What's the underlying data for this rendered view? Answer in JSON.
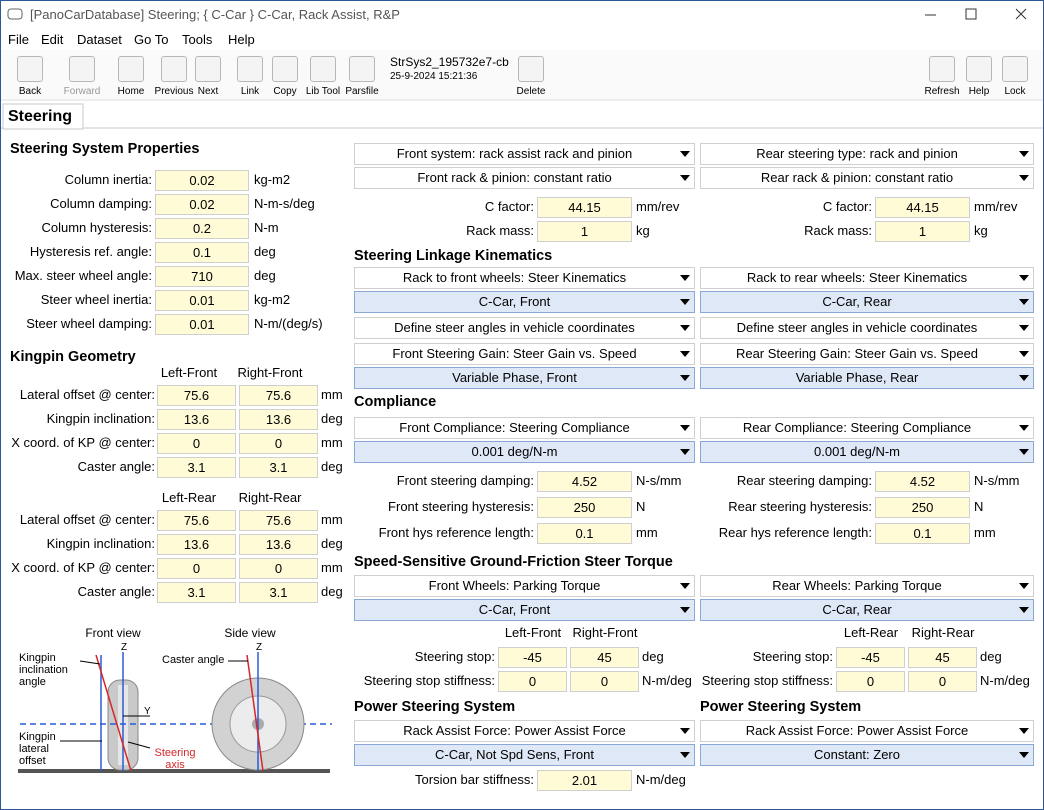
{
  "window": {
    "title": "[PanoCarDatabase] Steering; { C-Car } C-Car, Rack Assist, R&P"
  },
  "menu": [
    "File",
    "Edit",
    "Dataset",
    "Go To",
    "Tools",
    "Help"
  ],
  "toolbar": {
    "buttons": [
      "Back",
      "Forward",
      "Home",
      "Previous",
      "Next",
      "Link",
      "Copy",
      "Lib Tool",
      "Parsfile",
      "Delete",
      "Refresh",
      "Help",
      "Lock"
    ],
    "dataset_name": "StrSys2_195732e7-cb",
    "dataset_date": "25-9-2024 15:21:36"
  },
  "tab": "Steering",
  "steering_system": {
    "heading": "Steering System Properties",
    "fields": [
      {
        "label": "Column inertia:",
        "value": 0.02,
        "unit": "kg-m2"
      },
      {
        "label": "Column damping:",
        "value": 0.02,
        "unit": "N-m-s/deg"
      },
      {
        "label": "Column hysteresis:",
        "value": 0.2,
        "unit": "N-m"
      },
      {
        "label": "Hysteresis ref. angle:",
        "value": 0.1,
        "unit": "deg"
      },
      {
        "label": "Max. steer wheel angle:",
        "value": 710,
        "unit": "deg"
      },
      {
        "label": "Steer wheel inertia:",
        "value": 0.01,
        "unit": "kg-m2"
      },
      {
        "label": "Steer wheel damping:",
        "value": 0.01,
        "unit": "N-m/(deg/s)"
      }
    ]
  },
  "kingpin": {
    "heading": "Kingpin Geometry",
    "groups": [
      {
        "columns": [
          "Left-Front",
          "Right-Front"
        ],
        "rows": [
          {
            "label": "Lateral offset @ center:",
            "values": [
              75.6,
              75.6
            ],
            "unit": "mm"
          },
          {
            "label": "Kingpin inclination:",
            "values": [
              13.6,
              13.6
            ],
            "unit": "deg"
          },
          {
            "label": "X coord. of KP @ center:",
            "values": [
              0,
              0
            ],
            "unit": "mm"
          },
          {
            "label": "Caster angle:",
            "values": [
              3.1,
              3.1
            ],
            "unit": "deg"
          }
        ]
      },
      {
        "columns": [
          "Left-Rear",
          "Right-Rear"
        ],
        "rows": [
          {
            "label": "Lateral offset @ center:",
            "values": [
              75.6,
              75.6
            ],
            "unit": "mm"
          },
          {
            "label": "Kingpin inclination:",
            "values": [
              13.6,
              13.6
            ],
            "unit": "deg"
          },
          {
            "label": "X coord. of KP @ center:",
            "values": [
              0,
              0
            ],
            "unit": "mm"
          },
          {
            "label": "Caster angle:",
            "values": [
              3.1,
              3.1
            ],
            "unit": "deg"
          }
        ]
      }
    ]
  },
  "diagram": {
    "front_view": "Front view",
    "side_view": "Side view",
    "kingpin_angle": "Kingpin inclination angle",
    "caster_angle": "Caster angle",
    "lateral_offset": "Kingpin lateral offset",
    "steering_axis": "Steering axis",
    "z_front": "Z",
    "z_side": "Z",
    "y_axis": "Y"
  },
  "right": {
    "rows": [
      {
        "front": {
          "dropdown": "Front system: rack assist rack and pinion",
          "highlight": false
        },
        "rear": {
          "dropdown": "Rear steering type: rack and pinion",
          "highlight": false
        }
      },
      {
        "front": {
          "dropdown": "Front rack & pinion: constant ratio",
          "highlight": false
        },
        "rear": {
          "dropdown": "Rear rack & pinion: constant ratio",
          "highlight": false
        }
      },
      {
        "front": {
          "label": "C factor:",
          "value": 44.15,
          "unit": "mm/rev"
        },
        "rear": {
          "label": "C factor:",
          "value": 44.15,
          "unit": "mm/rev"
        }
      },
      {
        "front": {
          "label": "Rack mass:",
          "value": 1,
          "unit": "kg"
        },
        "rear": {
          "label": "Rack mass:",
          "value": 1,
          "unit": "kg"
        }
      },
      {
        "heading": "Steering Linkage Kinematics"
      },
      {
        "front": {
          "dropdown": "Rack to front wheels: Steer Kinematics",
          "highlight": false
        },
        "rear": {
          "dropdown": "Rack to rear wheels: Steer Kinematics",
          "highlight": false
        }
      },
      {
        "front": {
          "dropdown": "C-Car, Front",
          "highlight": true
        },
        "rear": {
          "dropdown": "C-Car, Rear",
          "highlight": true
        }
      },
      {
        "front": {
          "dropdown": "Define steer angles in vehicle coordinates",
          "highlight": false
        },
        "rear": {
          "dropdown": "Define steer angles in vehicle coordinates",
          "highlight": false
        }
      },
      {
        "front": {
          "dropdown": "Front Steering Gain: Steer Gain vs. Speed",
          "highlight": false
        },
        "rear": {
          "dropdown": "Rear Steering Gain: Steer Gain vs. Speed",
          "highlight": false
        }
      },
      {
        "front": {
          "dropdown": "Variable Phase, Front",
          "highlight": true
        },
        "rear": {
          "dropdown": "Variable Phase, Rear",
          "highlight": true
        }
      },
      {
        "heading": "Compliance"
      },
      {
        "front": {
          "dropdown": "Front Compliance: Steering Compliance",
          "highlight": false
        },
        "rear": {
          "dropdown": "Rear Compliance: Steering Compliance",
          "highlight": false
        }
      },
      {
        "front": {
          "dropdown": "0.001 deg/N-m",
          "highlight": true
        },
        "rear": {
          "dropdown": "0.001 deg/N-m",
          "highlight": true
        }
      },
      {
        "front": {
          "label": "Front steering damping:",
          "value": 4.52,
          "unit": "N-s/mm"
        },
        "rear": {
          "label": "Rear steering damping:",
          "value": 4.52,
          "unit": "N-s/mm"
        }
      },
      {
        "front": {
          "label": "Front steering hysteresis:",
          "value": 250,
          "unit": "N"
        },
        "rear": {
          "label": "Rear steering hysteresis:",
          "value": 250,
          "unit": "N"
        }
      },
      {
        "front": {
          "label": "Front hys reference length:",
          "value": 0.1,
          "unit": "mm"
        },
        "rear": {
          "label": "Rear hys reference length:",
          "value": 0.1,
          "unit": "mm"
        }
      },
      {
        "heading": "Speed-Sensitive Ground-Friction Steer Torque"
      },
      {
        "front": {
          "dropdown": "Front Wheels: Parking Torque",
          "highlight": false
        },
        "rear": {
          "dropdown": "Rear Wheels: Parking Torque",
          "highlight": false
        }
      },
      {
        "front": {
          "dropdown": "C-Car, Front",
          "highlight": true
        },
        "rear": {
          "dropdown": "C-Car, Rear",
          "highlight": true
        }
      },
      {
        "front": {
          "columns": [
            "Left-Front",
            "Right-Front"
          ]
        },
        "rear": {
          "columns": [
            "Left-Rear",
            "Right-Rear"
          ]
        }
      },
      {
        "front": {
          "label": "Steering stop:",
          "values": [
            -45,
            45
          ],
          "unit": "deg"
        },
        "rear": {
          "label": "Steering stop:",
          "values": [
            -45,
            45
          ],
          "unit": "deg"
        }
      },
      {
        "front": {
          "label": "Steering stop stiffness:",
          "values": [
            0,
            0
          ],
          "unit": "N-m/deg"
        },
        "rear": {
          "label": "Steering stop stiffness:",
          "values": [
            0,
            0
          ],
          "unit": "N-m/deg"
        }
      },
      {
        "front": {
          "heading": "Power Steering System"
        },
        "rear": {
          "heading": "Power Steering System"
        }
      },
      {
        "front": {
          "dropdown": "Rack Assist Force: Power Assist Force",
          "highlight": false
        },
        "rear": {
          "dropdown": "Rack Assist Force: Power Assist Force",
          "highlight": false
        }
      },
      {
        "front": {
          "dropdown": "C-Car, Not Spd Sens, Front",
          "highlight": true
        },
        "rear": {
          "dropdown": "Constant: Zero",
          "highlight": true
        }
      },
      {
        "front": {
          "label": "Torsion bar stiffness:",
          "value": 2.01,
          "unit": "N-m/deg"
        }
      }
    ]
  }
}
